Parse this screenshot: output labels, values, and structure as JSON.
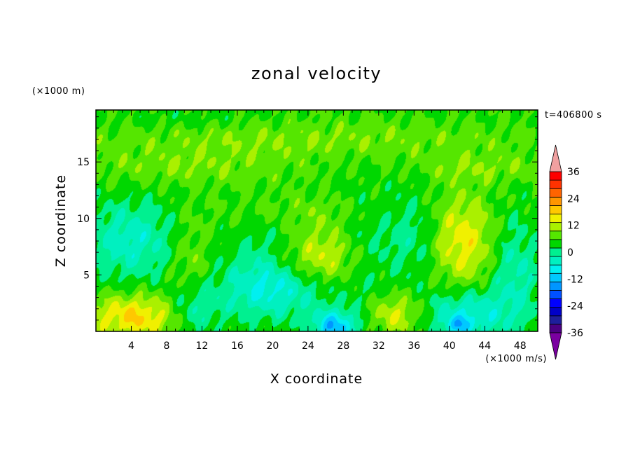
{
  "chart_data": {
    "type": "heatmap",
    "title": "zonal velocity",
    "xlabel": "X coordinate",
    "ylabel": "Z coordinate",
    "x_units": "(×1000 m/s)",
    "y_units": "(×1000 m)",
    "time_label": "t=406800 s",
    "xlim": [
      0,
      50
    ],
    "ylim": [
      0,
      19.6
    ],
    "x_ticks": [
      4,
      8,
      12,
      16,
      20,
      24,
      28,
      32,
      36,
      40,
      44,
      48
    ],
    "y_ticks": [
      5,
      10,
      15
    ],
    "levels": [
      -40,
      -36,
      -32,
      -28,
      -24,
      -20,
      -16,
      -12,
      -8,
      -4,
      0,
      4,
      8,
      12,
      16,
      20,
      24,
      28,
      32,
      36,
      40
    ],
    "colorbar_labels": [
      36,
      24,
      12,
      0,
      -12,
      -24,
      -36
    ],
    "colors": [
      "#7a00a0",
      "#4b0082",
      "#1e1e9c",
      "#0000c8",
      "#0000ff",
      "#0050ff",
      "#0096ff",
      "#00c8ff",
      "#00f0f0",
      "#00f0c0",
      "#00f090",
      "#00d700",
      "#55e600",
      "#aaf000",
      "#f0f000",
      "#ffc800",
      "#ff9600",
      "#ff6400",
      "#ff3200",
      "#ff0000",
      "#f0a0a0"
    ],
    "features": [
      {
        "x": 4.5,
        "z": 1.3,
        "rx": 5.5,
        "rz": 2.0,
        "v": 13
      },
      {
        "x": 4.0,
        "z": 8.0,
        "rx": 5.5,
        "rz": 3.5,
        "v": -10
      },
      {
        "x": 11.0,
        "z": 1.8,
        "rx": 3.0,
        "rz": 2.2,
        "v": -9
      },
      {
        "x": 10.5,
        "z": 6.5,
        "rx": 2.5,
        "rz": 4.0,
        "v": 5
      },
      {
        "x": 20.0,
        "z": 3.8,
        "rx": 6.0,
        "rz": 2.6,
        "v": -13
      },
      {
        "x": 20.0,
        "z": 7.5,
        "rx": 4.5,
        "rz": 2.5,
        "v": -5
      },
      {
        "x": 25.0,
        "z": 6.5,
        "rx": 5.0,
        "rz": 2.5,
        "v": 11
      },
      {
        "x": 27.0,
        "z": 0.3,
        "rx": 2.5,
        "rz": 1.5,
        "v": -18
      },
      {
        "x": 30.0,
        "z": 7.0,
        "rx": 3.0,
        "rz": 5.5,
        "v": -4
      },
      {
        "x": 34.0,
        "z": 1.5,
        "rx": 3.0,
        "rz": 1.7,
        "v": 9
      },
      {
        "x": 35.5,
        "z": 8.5,
        "rx": 3.5,
        "rz": 4.0,
        "v": -6
      },
      {
        "x": 41.5,
        "z": 8.0,
        "rx": 3.5,
        "rz": 4.0,
        "v": 11
      },
      {
        "x": 42.0,
        "z": 1.5,
        "rx": 4.5,
        "rz": 2.2,
        "v": -12
      },
      {
        "x": 41.0,
        "z": 0.5,
        "rx": 1.5,
        "rz": 0.8,
        "v": -10
      },
      {
        "x": 47.5,
        "z": 5.0,
        "rx": 3.0,
        "rz": 5.0,
        "v": -8
      },
      {
        "x": 25.0,
        "z": 17.0,
        "rx": 25.0,
        "rz": 1.6,
        "v": 4
      },
      {
        "x": 10.0,
        "z": 14.5,
        "rx": 12.0,
        "rz": 1.6,
        "v": 4
      },
      {
        "x": 44.0,
        "z": 14.5,
        "rx": 8.0,
        "rz": 1.3,
        "v": 4
      },
      {
        "x": 25.0,
        "z": 10.5,
        "rx": 9.0,
        "rz": 1.5,
        "v": 3
      },
      {
        "x": 10.0,
        "z": 18.8,
        "rx": 8.0,
        "rz": 0.8,
        "v": -2
      }
    ]
  }
}
